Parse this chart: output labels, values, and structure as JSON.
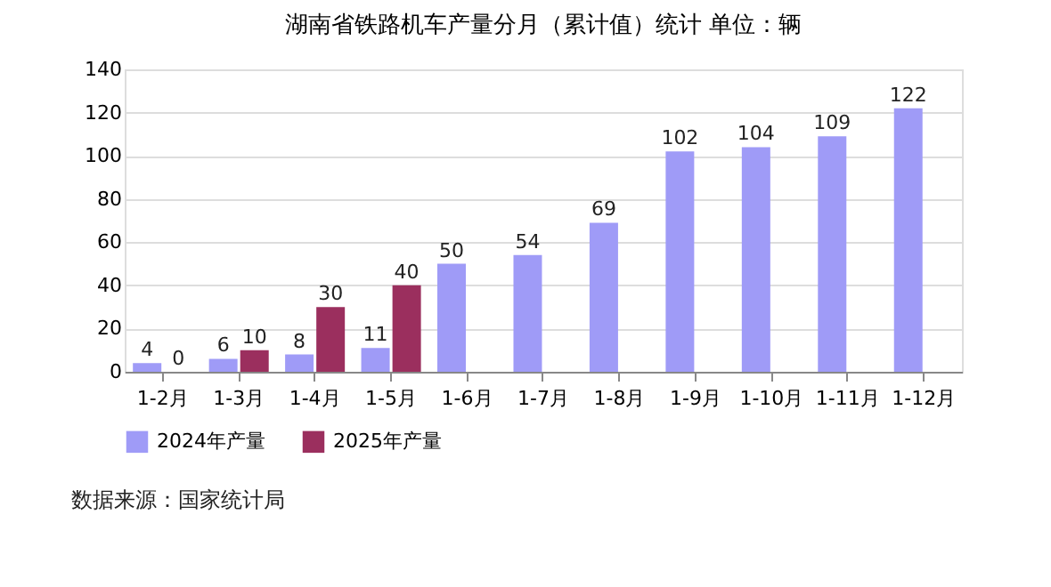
{
  "chart_data": {
    "type": "bar",
    "title": "湖南省铁路机车产量分月（累计值）统计  单位：辆",
    "categories": [
      "1-2月",
      "1-3月",
      "1-4月",
      "1-5月",
      "1-6月",
      "1-7月",
      "1-8月",
      "1-9月",
      "1-10月",
      "1-11月",
      "1-12月"
    ],
    "series": [
      {
        "name": "2024年产量",
        "color": "#9f9bf7",
        "values": [
          4,
          6,
          8,
          11,
          50,
          54,
          69,
          102,
          104,
          109,
          122
        ]
      },
      {
        "name": "2025年产量",
        "color": "#9b2f5e",
        "values": [
          0,
          10,
          30,
          40,
          null,
          null,
          null,
          null,
          null,
          null,
          null
        ]
      }
    ],
    "ylim": [
      0,
      140
    ],
    "yticks": [
      0,
      20,
      40,
      60,
      80,
      100,
      120,
      140
    ],
    "grid": "y",
    "legend": "bottom",
    "data_labels": true,
    "annotations": [
      "数据来源：国家统计局"
    ]
  }
}
